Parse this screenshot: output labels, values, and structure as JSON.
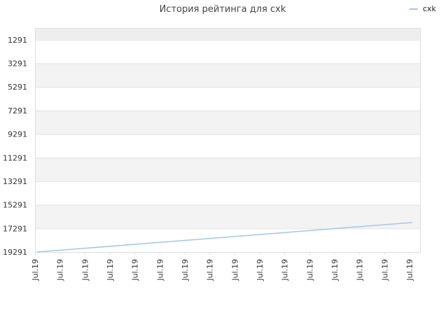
{
  "chart_data": {
    "type": "line",
    "title": "История рейтинга для cxk",
    "xlabel": "",
    "ylabel": "",
    "y_reversed": true,
    "ylim": [
      19291,
      291
    ],
    "y_ticks": [
      1291,
      3291,
      5291,
      7291,
      9291,
      11291,
      13291,
      15291,
      17291,
      19291
    ],
    "x_tick_labels": [
      "Jul.19",
      "Jul.19",
      "Jul.19",
      "Jul.19",
      "Jul.19",
      "Jul.19",
      "Jul.19",
      "Jul.19",
      "Jul.19",
      "Jul.19",
      "Jul.19",
      "Jul.19",
      "Jul.19",
      "Jul.19",
      "Jul.19",
      "Jul.19"
    ],
    "legend_position": "top-right",
    "grid": true,
    "series": [
      {
        "name": "cxk",
        "color": "#9fc8ec",
        "x": [
          0,
          15
        ],
        "y": [
          19291,
          16791
        ]
      }
    ]
  }
}
